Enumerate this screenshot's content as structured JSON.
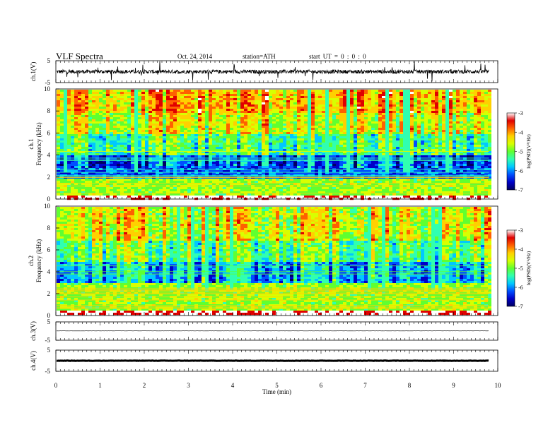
{
  "header": {
    "title": "VLF  Spectra",
    "date": "Oct. 24, 2014",
    "station": "station=ATH",
    "start_ut": "start  UT =  0 : 0 : 0"
  },
  "colors": {
    "colormap": [
      "#000060",
      "#0000c8",
      "#0050ff",
      "#00c8ff",
      "#30ffb0",
      "#60ff30",
      "#d8ff00",
      "#ffd000",
      "#ff6000",
      "#e00000",
      "#ffffff"
    ],
    "trace": "#000000"
  },
  "chart_data": [
    {
      "type": "line",
      "panel": "ch1-voltage",
      "ylabel": "ch.1(V)",
      "x_range": [
        0,
        10
      ],
      "ylim": [
        -5,
        5
      ],
      "yticks": [
        "5",
        "-5"
      ],
      "series": [
        {
          "x_end": 9.8,
          "baseline": 0,
          "noise_amplitude": 2.5,
          "description_hidden": true
        }
      ]
    },
    {
      "type": "heatmap",
      "panel": "ch1-spectrogram",
      "ylabel": "ch.1",
      "ylabel2": "Frequency  (kHz)",
      "x_range": [
        0,
        10
      ],
      "x_end": 9.8,
      "ylim": [
        0,
        10
      ],
      "yticks": [
        "0",
        "2",
        "4",
        "6",
        "8",
        "10"
      ],
      "colorbar": {
        "label": "log(PSD)(V²/Hz)",
        "range": [
          -7,
          -3
        ],
        "ticks": [
          "-3",
          "-4",
          "-5",
          "-6",
          "-7"
        ]
      },
      "bands": [
        {
          "from": 0,
          "to": 0.5,
          "level": 0.98
        },
        {
          "from": 0.5,
          "to": 2,
          "level": 0.55
        },
        {
          "from": 2,
          "to": 4,
          "level": 0.2
        },
        {
          "from": 4,
          "to": 6,
          "level": 0.45
        },
        {
          "from": 6,
          "to": 8,
          "level": 0.62
        },
        {
          "from": 8,
          "to": 10,
          "level": 0.72
        }
      ]
    },
    {
      "type": "heatmap",
      "panel": "ch2-spectrogram",
      "ylabel": "ch.2",
      "ylabel2": "Frequency  (kHz)",
      "x_range": [
        0,
        10
      ],
      "x_end": 9.8,
      "ylim": [
        0,
        10
      ],
      "yticks": [
        "0",
        "2",
        "4",
        "6",
        "8",
        "10"
      ],
      "colorbar": {
        "label": "log(PSD)(V²/Hz)",
        "range": [
          -7,
          -3
        ],
        "ticks": [
          "-3",
          "-4",
          "-5",
          "-6",
          "-7"
        ]
      },
      "bands": [
        {
          "from": 0,
          "to": 0.5,
          "level": 0.98
        },
        {
          "from": 0.5,
          "to": 3,
          "level": 0.55
        },
        {
          "from": 3,
          "to": 5,
          "level": 0.32
        },
        {
          "from": 5,
          "to": 7,
          "level": 0.5
        },
        {
          "from": 7,
          "to": 10,
          "level": 0.64
        }
      ]
    },
    {
      "type": "line",
      "panel": "ch3-voltage",
      "ylabel": "ch.3(V)",
      "x_range": [
        0,
        10
      ],
      "ylim": [
        -5,
        5
      ],
      "yticks": [
        "5",
        "-5"
      ],
      "series": [
        {
          "x_end": 9.8,
          "baseline": 0.1,
          "noise_amplitude": 0.05
        }
      ]
    },
    {
      "type": "line",
      "panel": "ch4-voltage",
      "ylabel": "ch.4(V)",
      "x_range": [
        0,
        10
      ],
      "ylim": [
        -5,
        5
      ],
      "yticks": [
        "5",
        "-5"
      ],
      "series": [
        {
          "x_end": 9.8,
          "baseline": 0,
          "noise_amplitude": 0.15
        }
      ]
    }
  ],
  "xaxis": {
    "xlabel": "Time  (min)",
    "xlim": [
      0,
      10
    ],
    "xticks": [
      "0",
      "1",
      "2",
      "3",
      "4",
      "5",
      "6",
      "7",
      "8",
      "9",
      "10"
    ]
  }
}
